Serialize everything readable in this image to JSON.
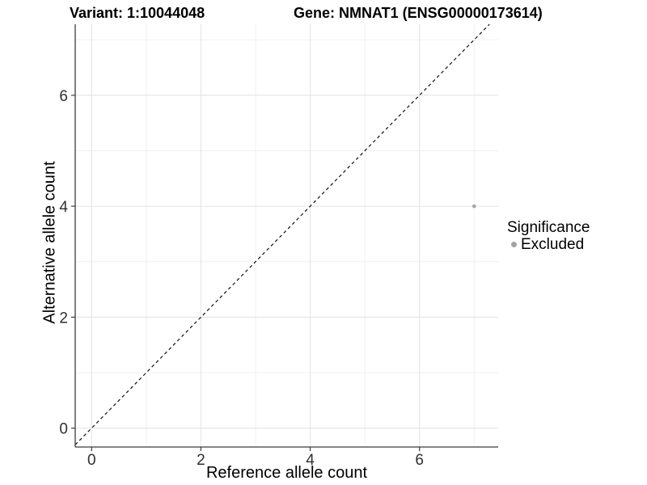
{
  "chart_data": {
    "type": "scatter",
    "titles": {
      "variant": "Variant: 1:10044048",
      "gene": "Gene: NMNAT1 (ENSG00000173614)"
    },
    "xlabel": "Reference allele count",
    "ylabel": "Alternative allele count",
    "x_ticks": [
      0,
      2,
      4,
      6
    ],
    "y_ticks": [
      0,
      2,
      4,
      6
    ],
    "x_minor_ticks": [
      1,
      3,
      5,
      7
    ],
    "y_minor_ticks": [
      1,
      3,
      5,
      7
    ],
    "xlim": [
      -0.3,
      7.44
    ],
    "ylim": [
      -0.34,
      7.28
    ],
    "grid": true,
    "legend_position": "right",
    "series": [
      {
        "name": "Excluded",
        "color": "#a3a3a3",
        "points": [
          {
            "x": 7,
            "y": 4
          }
        ]
      }
    ],
    "reference_line": {
      "kind": "identity y=x",
      "style": "dashed",
      "color": "#111111",
      "from": -0.3,
      "to": 7.28
    },
    "legend": {
      "title": "Significance",
      "items": [
        {
          "label": "Excluded",
          "color": "#a3a3a3"
        }
      ]
    }
  },
  "colors": {
    "background": "#ffffff",
    "grid_major": "#e4e4e4",
    "grid_minor": "#efefef",
    "axis_line": "#3c3c3c",
    "tick_mark": "#3c3c3c",
    "tick_label": "#2f2f2f",
    "title_text": "#000000",
    "point": "#a3a3a3"
  }
}
